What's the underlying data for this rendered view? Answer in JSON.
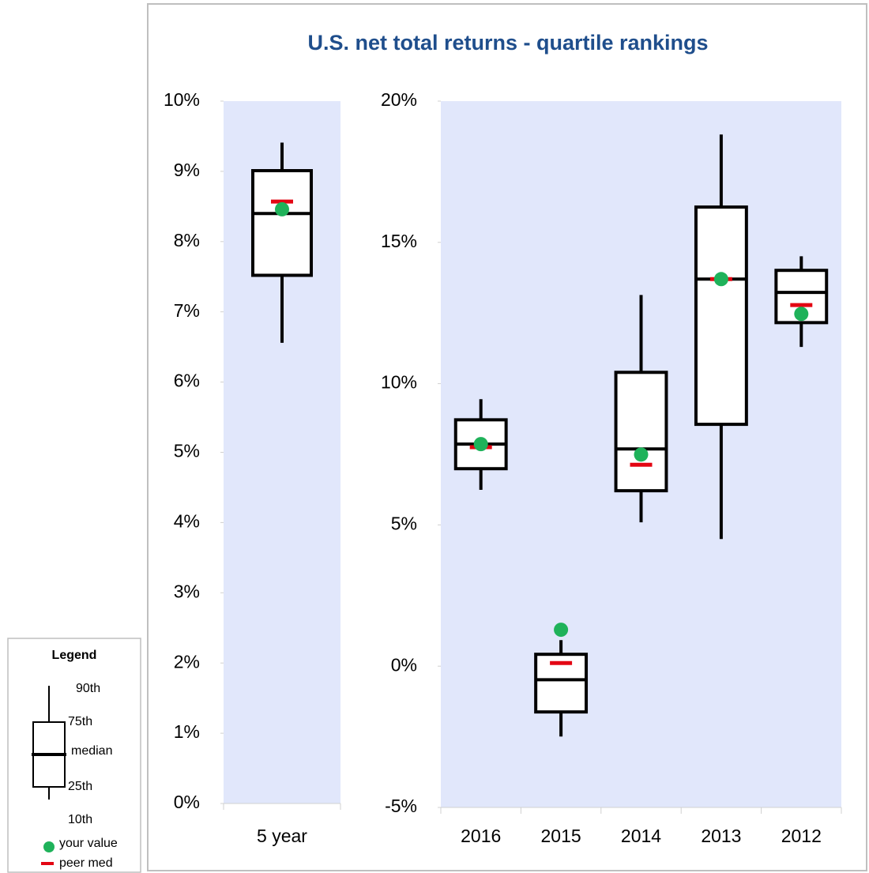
{
  "chart_data": [
    {
      "type": "box",
      "title": "U.S. net total returns - quartile rankings",
      "categories": [
        "5 year"
      ],
      "ylim": [
        0,
        10
      ],
      "yticks": [
        {
          "value": 0,
          "label": "0%"
        },
        {
          "value": 1,
          "label": "1%"
        },
        {
          "value": 2,
          "label": "2%"
        },
        {
          "value": 3,
          "label": "3%"
        },
        {
          "value": 4,
          "label": "4%"
        },
        {
          "value": 5,
          "label": "5%"
        },
        {
          "value": 6,
          "label": "6%"
        },
        {
          "value": 7,
          "label": "7%"
        },
        {
          "value": 8,
          "label": "8%"
        },
        {
          "value": 9,
          "label": "9%"
        },
        {
          "value": 10,
          "label": "10%"
        }
      ],
      "whisker_low": [
        6.56
      ],
      "q1": [
        7.52
      ],
      "median": [
        8.4
      ],
      "q3": [
        9.01
      ],
      "whisker_high": [
        9.41
      ],
      "peer_median": [
        8.57
      ],
      "your_value": [
        8.46
      ],
      "box_color": "#000000",
      "peer_color": "#e30613",
      "value_color": "#1fb25a",
      "background": "#e1e7fb"
    },
    {
      "type": "box",
      "categories": [
        "2016",
        "2015",
        "2014",
        "2013",
        "2012"
      ],
      "ylim": [
        -5,
        20
      ],
      "yticks": [
        {
          "value": -5,
          "label": "-5%"
        },
        {
          "value": 0,
          "label": "0%"
        },
        {
          "value": 5,
          "label": "5%"
        },
        {
          "value": 10,
          "label": "10%"
        },
        {
          "value": 15,
          "label": "15%"
        },
        {
          "value": 20,
          "label": "20%"
        }
      ],
      "whisker_low": [
        6.24,
        -2.49,
        5.09,
        4.5,
        11.3
      ],
      "q1": [
        6.99,
        -1.62,
        6.21,
        8.56,
        12.16
      ],
      "median": [
        7.86,
        -0.48,
        7.69,
        13.7,
        13.23
      ],
      "q3": [
        8.72,
        0.42,
        10.4,
        16.25,
        14.01
      ],
      "whisker_high": [
        9.45,
        0.92,
        13.14,
        18.82,
        14.51
      ],
      "peer_median": [
        7.75,
        0.11,
        7.13,
        13.7,
        12.78
      ],
      "your_value": [
        7.86,
        1.29,
        7.49,
        13.7,
        12.47
      ],
      "box_color": "#000000",
      "peer_color": "#e30613",
      "value_color": "#1fb25a",
      "background": "#e1e7fb"
    }
  ],
  "legend": {
    "title": "Legend",
    "p90": "90th",
    "p75": "75th",
    "median": "median",
    "p25": "25th",
    "p10": "10th",
    "your_value": "your value",
    "peer_median": "peer med"
  }
}
